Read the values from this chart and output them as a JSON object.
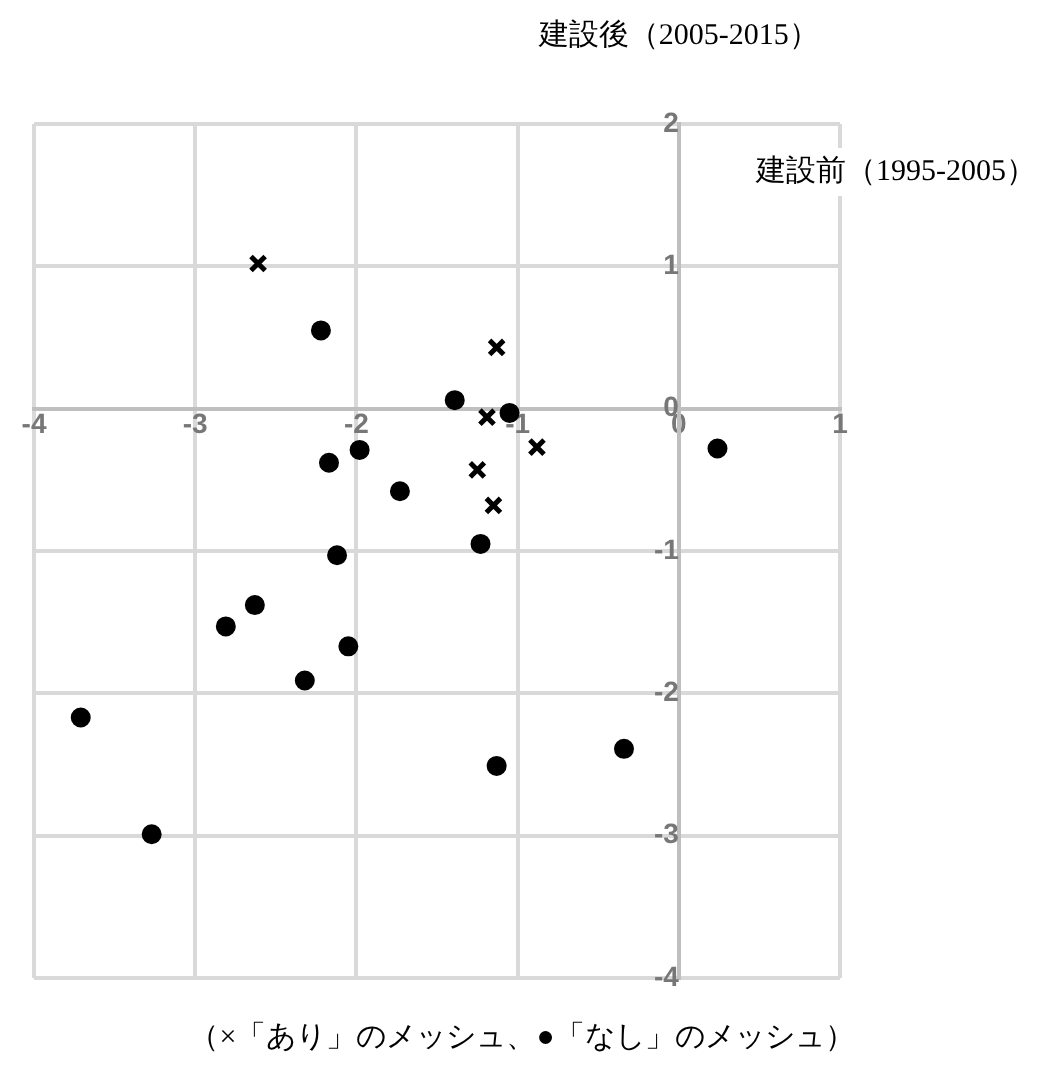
{
  "chart_data": {
    "type": "scatter",
    "xlabel": "建設前（1995-2005）",
    "ylabel": "建設後（2005-2015）",
    "annotations": [
      "（×「あり」のメッシュ、●「なし」のメッシュ）"
    ],
    "xlim": [
      -4,
      1
    ],
    "xticks": [
      -4,
      -3,
      -2,
      -1,
      0,
      1
    ],
    "ylim": [
      -4,
      2
    ],
    "yticks": [
      -4,
      -3,
      -2,
      -1,
      0,
      1,
      2
    ],
    "grid": true,
    "legend": false,
    "series": [
      {
        "color": "#000000",
        "marker": "cross",
        "x": [
          -2.61,
          -1.13,
          -1.19,
          -0.88,
          -1.25,
          -1.15
        ],
        "values": [
          1.02,
          0.43,
          -0.06,
          -0.27,
          -0.43,
          -0.68
        ]
      },
      {
        "color": "#000000",
        "marker": "circle",
        "x": [
          -2.22,
          -1.39,
          -1.05,
          0.24,
          -2.17,
          -1.98,
          -1.73,
          -1.23,
          -2.12,
          -2.63,
          -2.81,
          -2.05,
          -2.32,
          -3.71,
          -1.13,
          -0.34,
          -3.27
        ],
        "values": [
          0.55,
          0.06,
          -0.03,
          -0.28,
          -0.38,
          -0.29,
          -0.58,
          -0.95,
          -1.03,
          -1.38,
          -1.53,
          -1.67,
          -1.91,
          -2.17,
          -2.51,
          -2.39,
          -2.99
        ]
      }
    ]
  }
}
